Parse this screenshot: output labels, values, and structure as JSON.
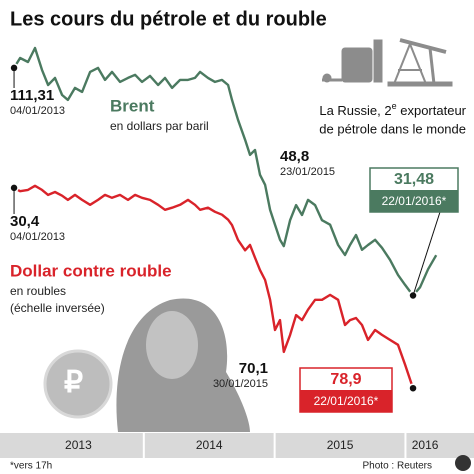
{
  "chart_data": {
    "type": "line",
    "title": "Les cours du pétrole et du rouble",
    "x": [
      2013.008,
      2013.054,
      2013.115,
      2013.168,
      2013.222,
      2013.268,
      2013.321,
      2013.375,
      2013.42,
      2013.474,
      2013.528,
      2013.589,
      2013.65,
      2013.703,
      2013.757,
      2013.818,
      2013.879,
      2013.933,
      2013.986,
      2014.047,
      2014.109,
      2014.162,
      2014.216,
      2014.277,
      2014.338,
      2014.391,
      2014.43,
      2014.491,
      2014.544,
      2014.598,
      2014.644,
      2014.674,
      2014.72,
      2014.774,
      2014.812,
      2014.85,
      2014.888,
      2014.927,
      2014.965,
      2015.003,
      2015.041,
      2015.07,
      2015.118,
      2015.164,
      2015.209,
      2015.255,
      2015.309,
      2015.362,
      2015.424,
      2015.485,
      2015.538,
      2015.576,
      2015.622,
      2015.668,
      2015.714,
      2015.768,
      2015.821,
      2015.882,
      2015.943,
      2015.997,
      2016.058,
      2016.112,
      2016.173,
      2016.235
    ],
    "xlim": [
      2013,
      2016.524
    ],
    "xticks": [
      {
        "value": 2013.5,
        "label": "2013"
      },
      {
        "value": 2014.5,
        "label": "2014"
      },
      {
        "value": 2015.5,
        "label": "2015"
      },
      {
        "value": 2016.15,
        "label": "2016"
      }
    ],
    "ylim": [
      -16.4,
      121.1
    ],
    "y2lim": [
      -5.4,
      89.5
    ],
    "y2_inverted": true,
    "series": [
      {
        "name": "Brent",
        "subtitle": "en dollars par baril",
        "color": "#4b7a60",
        "values": [
          111.31,
          114.8,
          113.4,
          118.3,
          110.6,
          105.3,
          107.8,
          101.8,
          100.1,
          104.3,
          102.9,
          109.9,
          111.3,
          107.1,
          109.9,
          106.4,
          107.8,
          108.9,
          106.4,
          108.5,
          105.3,
          107.8,
          104.3,
          107.1,
          107.1,
          107.8,
          109.9,
          107.8,
          106.4,
          107.1,
          105.3,
          100.1,
          93.1,
          86.1,
          80.8,
          82.5,
          73.8,
          70.3,
          61.5,
          56.3,
          51.0,
          48.8,
          57.9,
          63.2,
          59.7,
          65.0,
          63.2,
          57.9,
          56.3,
          49.2,
          45.7,
          49.2,
          52.7,
          47.5,
          49.2,
          51.0,
          48.2,
          44.0,
          38.7,
          35.2,
          31.48,
          34.4,
          40.7,
          45.6
        ]
      },
      {
        "name": "Dollar contre rouble",
        "subtitle": [
          "en roubles",
          "(échelle inversée)"
        ],
        "color": "#d9232a",
        "axis": "y2",
        "values": [
          30.4,
          31.2,
          30.9,
          29.9,
          30.9,
          32.1,
          31.4,
          32.3,
          33.3,
          32.1,
          33.3,
          34.5,
          33.3,
          32.1,
          32.8,
          32.1,
          33.3,
          32.1,
          32.8,
          33.3,
          34.5,
          35.7,
          35.2,
          34.5,
          33.3,
          34.5,
          35.7,
          35.2,
          36.2,
          36.9,
          38.1,
          39.4,
          43.0,
          45.5,
          44.2,
          47.3,
          50.3,
          52.7,
          57.5,
          64.8,
          62.4,
          70.1,
          66.0,
          61.2,
          62.4,
          59.9,
          57.5,
          57.5,
          56.3,
          57.5,
          63.6,
          62.4,
          61.9,
          63.6,
          67.2,
          64.8,
          66.0,
          67.2,
          68.4,
          73.2,
          78.9,
          null,
          null,
          null
        ]
      }
    ],
    "annotations": [
      {
        "value": "111,31",
        "date": "04/01/2013"
      },
      {
        "value": "48,8",
        "date": "23/01/2015"
      },
      {
        "value": "31,48",
        "date": "22/01/2016*"
      },
      {
        "value": "30,4",
        "date": "04/01/2013"
      },
      {
        "value": "70,1",
        "date": "30/01/2015"
      },
      {
        "value": "78,9",
        "date": "22/01/2016*"
      }
    ],
    "note": {
      "before": "La Russie, 2",
      "sup": "e",
      "after": " exportateur",
      "line2": "de pétrole dans le monde"
    },
    "footnote": "*vers 17h",
    "credit": "Photo : Reuters"
  }
}
